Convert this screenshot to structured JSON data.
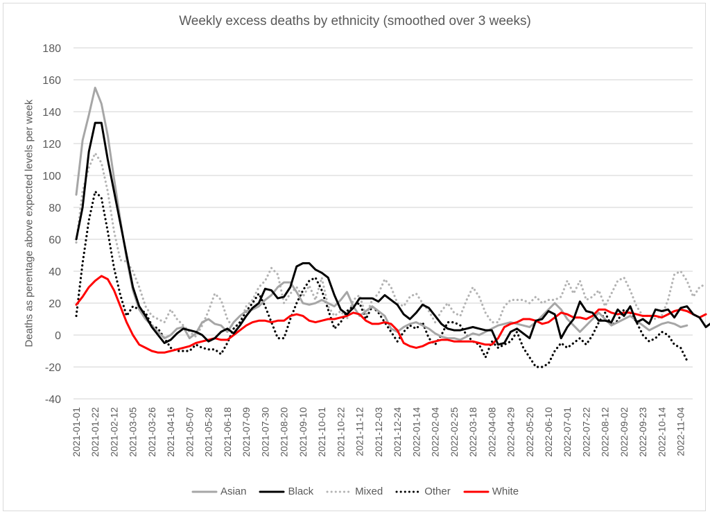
{
  "chart_data": {
    "type": "line",
    "title": "Weekly excess deaths by ethnicity (smoothed over 3 weeks)",
    "xlabel": "",
    "ylabel": "Deaths as perentage above expected levels per week",
    "ylim": [
      -40,
      180
    ],
    "yticks": [
      -40,
      -20,
      0,
      20,
      40,
      60,
      80,
      100,
      120,
      140,
      160,
      180
    ],
    "grid": true,
    "legend_position": "bottom",
    "x_start": "2021-01-01",
    "x_step_days": 7,
    "xtick_labels": [
      "2021-01-01",
      "2021-01-22",
      "2021-02-12",
      "2021-03-05",
      "2021-03-26",
      "2021-04-16",
      "2021-05-07",
      "2021-05-28",
      "2021-06-18",
      "2021-07-09",
      "2021-07-30",
      "2021-08-20",
      "2021-09-10",
      "2021-10-01",
      "2021-10-22",
      "2021-11-12",
      "2021-12-03",
      "2021-12-24",
      "2022-01-14",
      "2022-02-04",
      "2022-02-25",
      "2022-03-18",
      "2022-04-08",
      "2022-04-29",
      "2022-05-20",
      "2022-06-10",
      "2022-07-01",
      "2022-07-22",
      "2022-08-12",
      "2022-09-02",
      "2022-09-23",
      "2022-10-14",
      "2022-11-04"
    ],
    "series": [
      {
        "name": "Asian",
        "color": "#a6a6a6",
        "dash": "solid",
        "values": [
          88,
          122,
          138,
          155,
          145,
          125,
          98,
          72,
          48,
          28,
          16,
          10,
          6,
          2,
          -2,
          0,
          4,
          5,
          -2,
          1,
          8,
          10,
          7,
          6,
          2,
          8,
          12,
          15,
          16,
          18,
          22,
          25,
          30,
          33,
          33,
          27,
          20,
          19,
          20,
          22,
          20,
          18,
          22,
          27,
          18,
          12,
          15,
          18,
          15,
          12,
          4,
          2,
          5,
          7,
          8,
          6,
          4,
          1,
          -1,
          -2,
          -2,
          -3,
          -1,
          1,
          0,
          2,
          4,
          6,
          7,
          8,
          7,
          6,
          5,
          8,
          12,
          16,
          20,
          16,
          10,
          6,
          2,
          6,
          10,
          14,
          10,
          6,
          8,
          10,
          12,
          9,
          6,
          3,
          5,
          7,
          8,
          7,
          5,
          6
        ]
      },
      {
        "name": "Black",
        "color": "#000000",
        "dash": "solid",
        "values": [
          60,
          80,
          115,
          133,
          133,
          110,
          90,
          70,
          50,
          30,
          18,
          12,
          5,
          0,
          -5,
          -3,
          1,
          4,
          3,
          2,
          0,
          -4,
          -2,
          2,
          4,
          1,
          6,
          12,
          17,
          20,
          29,
          28,
          23,
          24,
          30,
          43,
          45,
          45,
          41,
          39,
          36,
          25,
          16,
          13,
          17,
          23,
          23,
          23,
          21,
          25,
          22,
          19,
          13,
          10,
          14,
          19,
          17,
          12,
          7,
          4,
          3,
          3,
          4,
          5,
          4,
          3,
          3,
          -6,
          -5,
          2,
          4,
          1,
          -2,
          9,
          10,
          15,
          13,
          -2,
          5,
          10,
          21,
          15,
          14,
          9,
          9,
          8,
          16,
          12,
          18,
          8,
          10,
          7,
          16,
          15,
          16,
          11,
          17,
          18,
          13,
          11,
          5,
          8
        ]
      },
      {
        "name": "Mixed",
        "color": "#b3b3b3",
        "dash": "dotted",
        "values": [
          58,
          90,
          105,
          114,
          108,
          90,
          65,
          47,
          46,
          40,
          30,
          18,
          12,
          10,
          8,
          16,
          10,
          6,
          2,
          -1,
          6,
          15,
          26,
          22,
          10,
          4,
          8,
          18,
          22,
          30,
          34,
          42,
          38,
          20,
          26,
          30,
          24,
          31,
          22,
          36,
          18,
          12,
          15,
          10,
          22,
          25,
          12,
          22,
          26,
          35,
          30,
          20,
          18,
          24,
          26,
          20,
          15,
          8,
          15,
          20,
          14,
          12,
          22,
          30,
          24,
          14,
          8,
          8,
          18,
          22,
          22,
          22,
          20,
          24,
          20,
          22,
          22,
          24,
          34,
          26,
          34,
          22,
          24,
          28,
          18,
          26,
          34,
          36,
          28,
          18,
          12,
          12,
          10,
          12,
          22,
          38,
          40,
          34,
          24,
          30,
          32
        ]
      },
      {
        "name": "Other",
        "color": "#000000",
        "dash": "dotted",
        "values": [
          12,
          45,
          72,
          90,
          86,
          65,
          42,
          25,
          12,
          18,
          16,
          14,
          6,
          4,
          -2,
          -8,
          -10,
          -10,
          -10,
          -6,
          -8,
          -9,
          -9,
          -12,
          -5,
          4,
          8,
          15,
          20,
          26,
          18,
          8,
          -2,
          -2,
          10,
          20,
          28,
          34,
          36,
          28,
          16,
          4,
          8,
          15,
          18,
          20,
          10,
          18,
          14,
          8,
          2,
          -4,
          2,
          6,
          4,
          8,
          -2,
          -6,
          0,
          8,
          8,
          6,
          0,
          -4,
          -6,
          -14,
          -4,
          -8,
          -6,
          -4,
          2,
          -8,
          -14,
          -20,
          -20,
          -18,
          -10,
          -5,
          -8,
          -5,
          -2,
          -6,
          0,
          8,
          14,
          6,
          9,
          16,
          14,
          8,
          0,
          -4,
          -2,
          2,
          0,
          -6,
          -8,
          -16
        ]
      },
      {
        "name": "White",
        "color": "#ff0000",
        "dash": "solid",
        "values": [
          19,
          24,
          30,
          34,
          37,
          35,
          28,
          18,
          8,
          0,
          -6,
          -8,
          -10,
          -11,
          -11,
          -10,
          -9,
          -8,
          -7,
          -5,
          -4,
          -3,
          -2,
          -3,
          -3,
          0,
          3,
          6,
          8,
          9,
          9,
          8,
          9,
          9,
          12,
          13,
          12,
          9,
          8,
          9,
          10,
          10,
          11,
          12,
          14,
          13,
          9,
          7,
          7,
          8,
          7,
          3,
          -5,
          -7,
          -8,
          -7,
          -5,
          -4,
          -3,
          -3,
          -4,
          -4,
          -4,
          -4,
          -5,
          -6,
          -6,
          -2,
          5,
          7,
          8,
          10,
          10,
          9,
          7,
          8,
          11,
          14,
          13,
          11,
          11,
          10,
          12,
          16,
          16,
          14,
          13,
          14,
          14,
          13,
          12,
          12,
          12,
          11,
          13,
          15,
          16,
          15,
          13,
          11,
          13
        ]
      }
    ]
  }
}
